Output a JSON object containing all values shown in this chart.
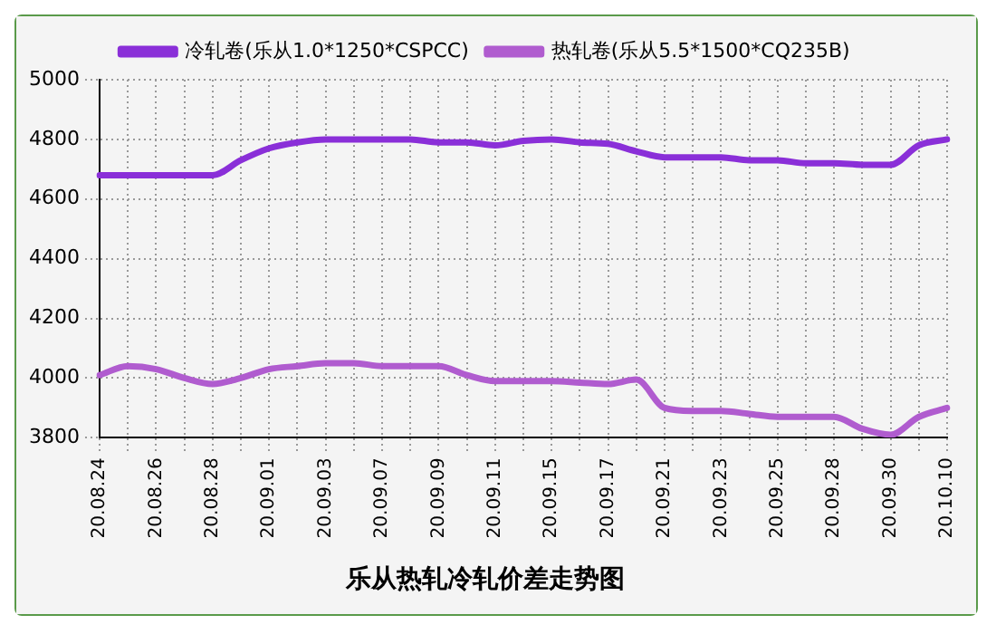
{
  "chart_data": {
    "type": "line",
    "title": "乐从热轧冷轧价差走势图",
    "categories": [
      "20.08.24",
      null,
      "20.08.26",
      null,
      "20.08.28",
      null,
      "20.09.01",
      null,
      "20.09.03",
      null,
      "20.09.07",
      null,
      "20.09.09",
      null,
      "20.09.11",
      null,
      "20.09.15",
      null,
      "20.09.17",
      null,
      "20.09.21",
      null,
      "20.09.23",
      null,
      "20.09.25",
      null,
      "20.09.28",
      null,
      "20.09.30",
      null,
      "20.10.10"
    ],
    "series": [
      {
        "name": "冷轧卷(乐从1.0*1250*CSPCC)",
        "color": "#8a2fd8",
        "values": [
          4680,
          4680,
          4680,
          4680,
          4680,
          4730,
          4770,
          4790,
          4800,
          4800,
          4800,
          4800,
          4790,
          4790,
          4780,
          4795,
          4800,
          4790,
          4785,
          4760,
          4740,
          4740,
          4740,
          4730,
          4730,
          4720,
          4720,
          4715,
          4715,
          4780,
          4800
        ]
      },
      {
        "name": "热轧卷(乐从5.5*1500*CQ235B)",
        "color": "#b05ccf",
        "values": [
          4010,
          4040,
          4030,
          4000,
          3980,
          4000,
          4030,
          4040,
          4050,
          4050,
          4040,
          4040,
          4040,
          4010,
          3990,
          3990,
          3990,
          3985,
          3980,
          3995,
          3900,
          3890,
          3890,
          3880,
          3870,
          3870,
          3870,
          3830,
          3810,
          3870,
          3900
        ]
      }
    ],
    "ylim": [
      3800,
      5000
    ],
    "yticks": [
      3800,
      4000,
      4200,
      4400,
      4600,
      4800,
      5000
    ],
    "grid": true,
    "legend": "top",
    "marker": "none",
    "line_style": "solid"
  }
}
